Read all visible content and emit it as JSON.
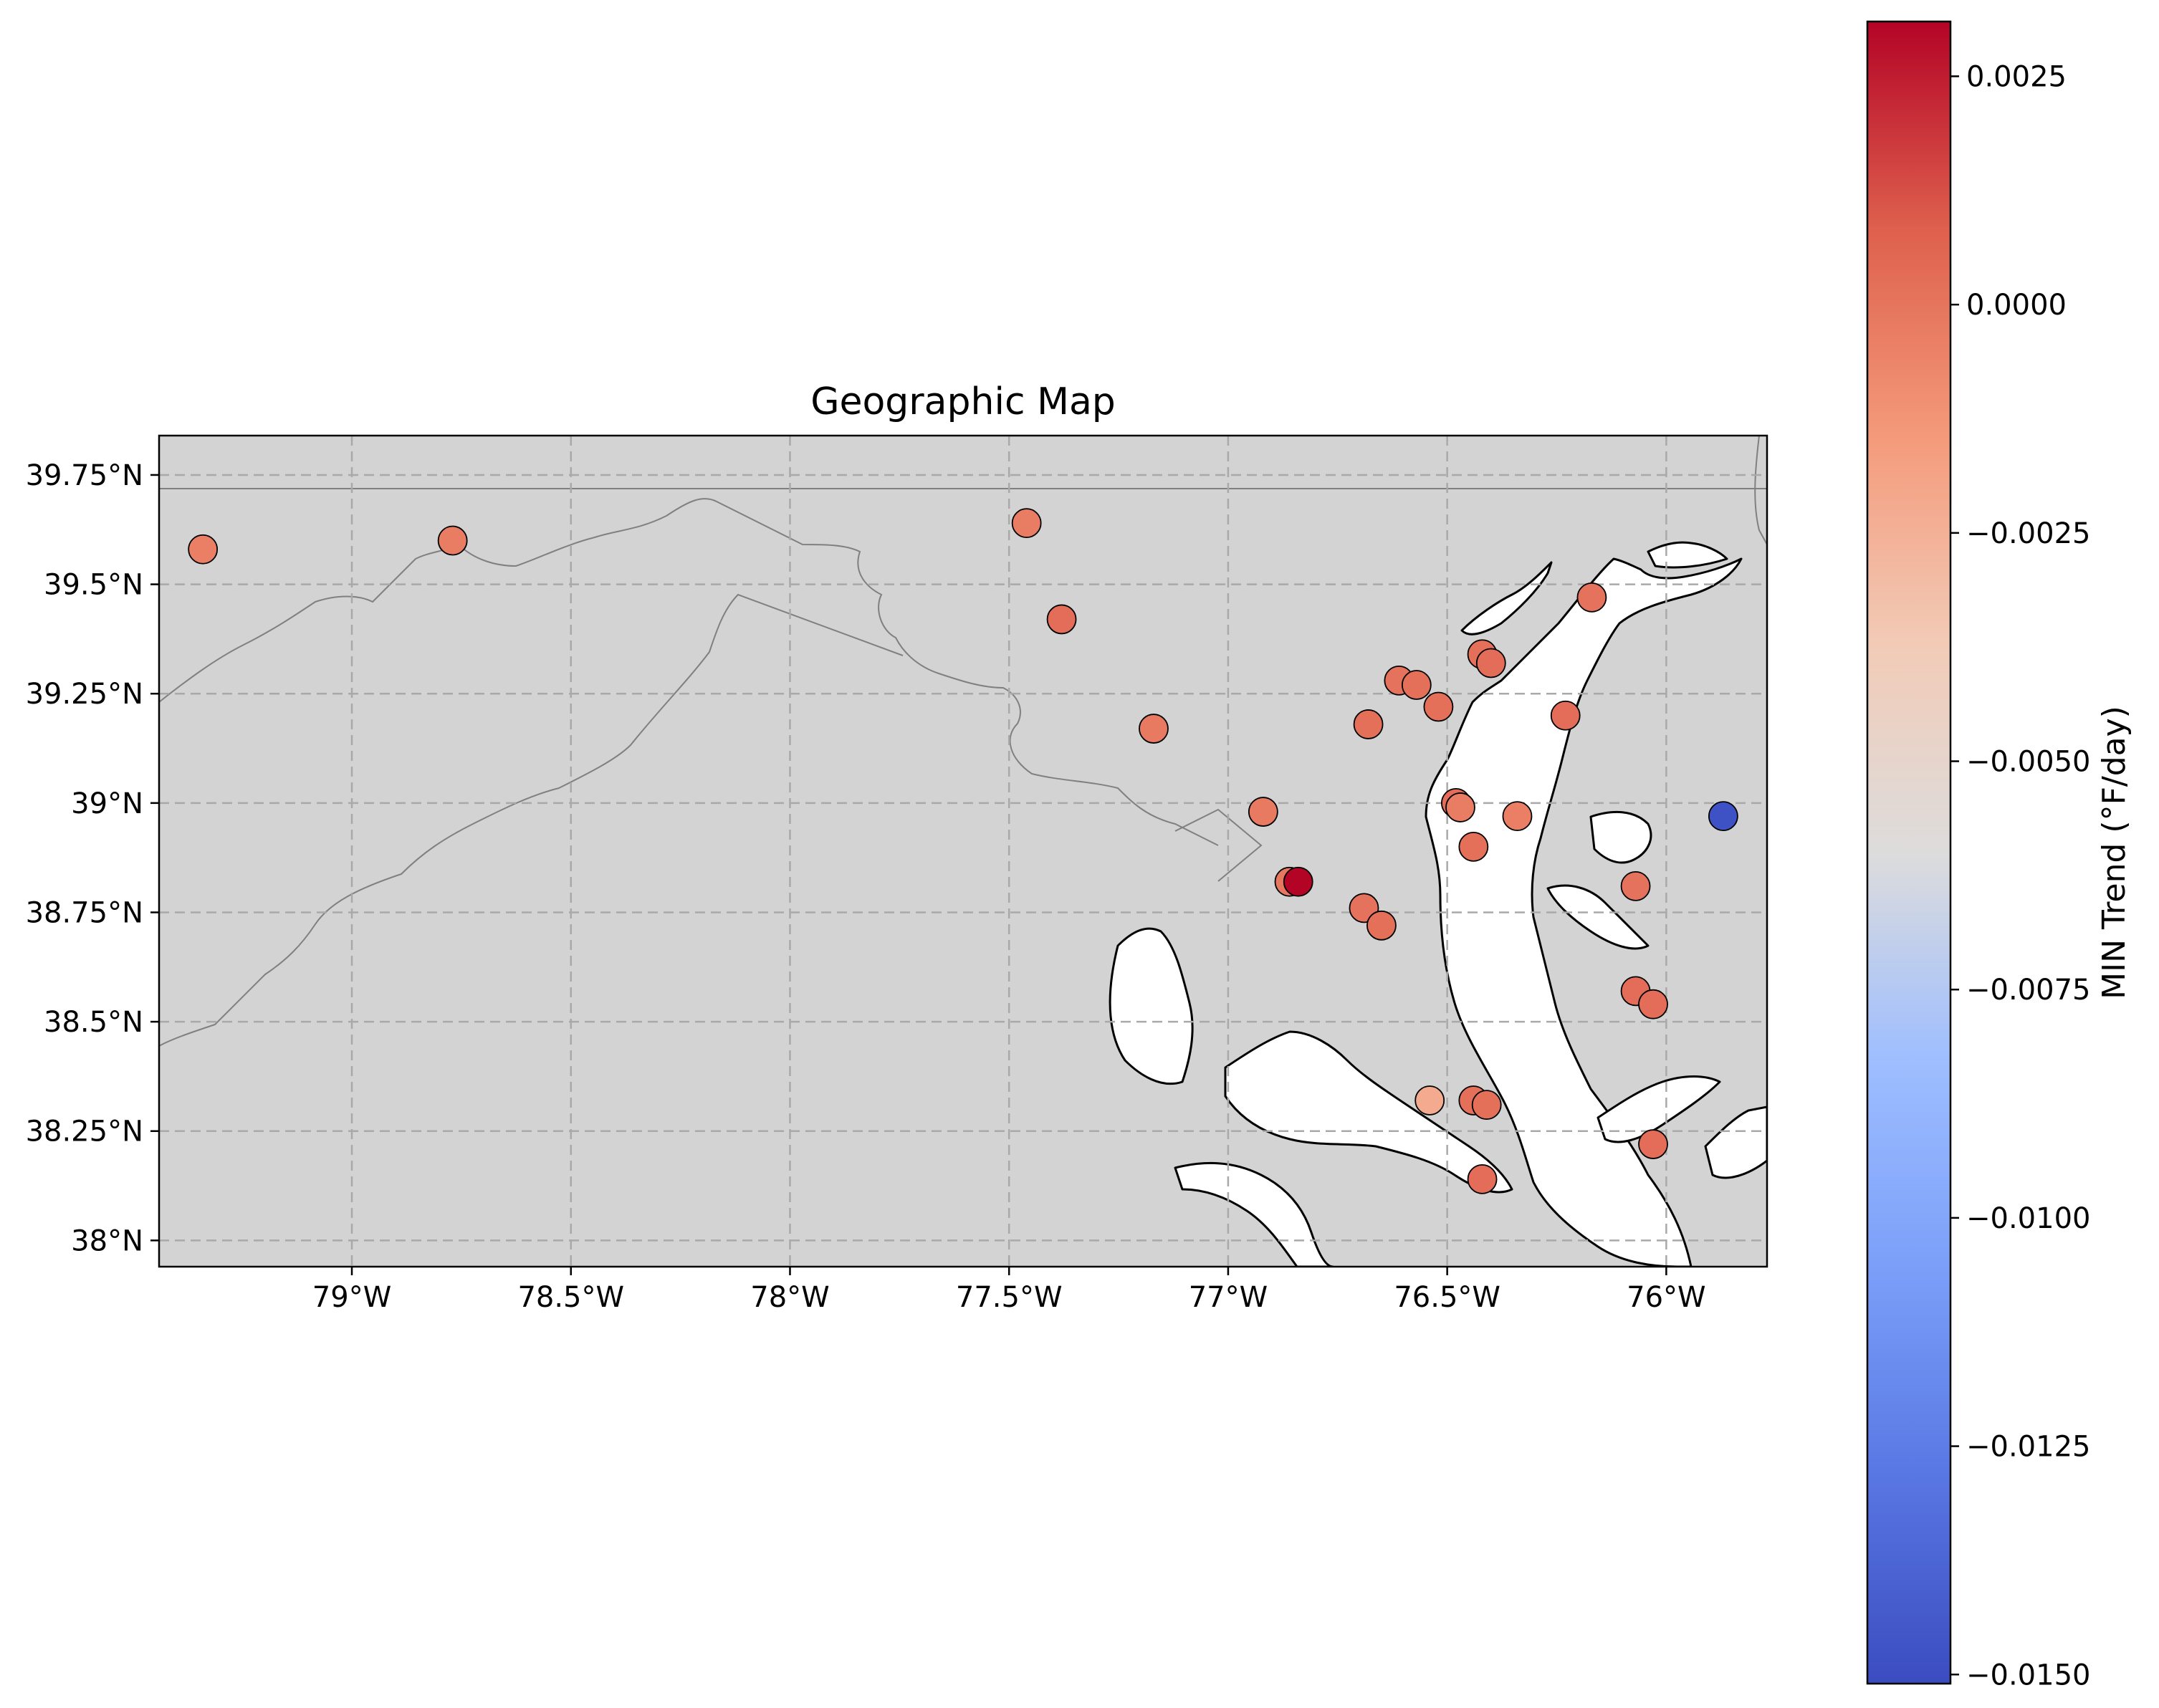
{
  "title": "Geographic Map",
  "colorbar_label": "MIN Trend (°F/day)",
  "colors": {
    "land": "#d3d3d3",
    "water": "#ffffff",
    "coastline": "#000000",
    "border": "#808080",
    "grid": "#a9a9a9",
    "colormap": "coolwarm"
  },
  "chart_data": {
    "type": "scatter",
    "title": "Geographic Map",
    "xlabel": "",
    "ylabel": "",
    "xlim": [
      -79.44,
      -75.77
    ],
    "ylim": [
      37.94,
      39.84
    ],
    "grid": true,
    "x_ticks": [
      -79.0,
      -78.5,
      -78.0,
      -77.5,
      -77.0,
      -76.5,
      -76.0
    ],
    "x_tick_labels": [
      "79°W",
      "78.5°W",
      "78°W",
      "77.5°W",
      "77°W",
      "76.5°W",
      "76°W"
    ],
    "y_ticks": [
      38.0,
      38.25,
      38.5,
      38.75,
      39.0,
      39.25,
      39.5,
      39.75
    ],
    "y_tick_labels": [
      "38°N",
      "38.25°N",
      "38.5°N",
      "38.75°N",
      "39°N",
      "39.25°N",
      "39.5°N",
      "39.75°N"
    ],
    "colorbar": {
      "label": "MIN Trend (°F/day)",
      "min": -0.0151,
      "max": 0.0031,
      "ticks": [
        0.0025,
        0.0,
        -0.0025,
        -0.005,
        -0.0075,
        -0.01,
        -0.0125,
        -0.015
      ],
      "tick_labels": [
        "0.0025",
        "0.0000",
        "−0.0025",
        "−0.0050",
        "−0.0075",
        "−0.0100",
        "−0.0125",
        "−0.0150"
      ]
    },
    "points": [
      {
        "lon": -79.34,
        "lat": 39.58,
        "value": -0.0004
      },
      {
        "lon": -78.77,
        "lat": 39.6,
        "value": -0.0003
      },
      {
        "lon": -77.46,
        "lat": 39.64,
        "value": -0.0003
      },
      {
        "lon": -77.38,
        "lat": 39.42,
        "value": 0.0003
      },
      {
        "lon": -77.17,
        "lat": 39.17,
        "value": -0.0002
      },
      {
        "lon": -76.92,
        "lat": 38.98,
        "value": -0.0002
      },
      {
        "lon": -76.86,
        "lat": 38.82,
        "value": -0.0001
      },
      {
        "lon": -76.84,
        "lat": 38.82,
        "value": 0.0031
      },
      {
        "lon": -76.69,
        "lat": 38.76,
        "value": 0.0001
      },
      {
        "lon": -76.65,
        "lat": 38.72,
        "value": 0.0002
      },
      {
        "lon": -76.68,
        "lat": 39.18,
        "value": 0.0002
      },
      {
        "lon": -76.61,
        "lat": 39.28,
        "value": 0.0001
      },
      {
        "lon": -76.57,
        "lat": 39.27,
        "value": 0.0002
      },
      {
        "lon": -76.52,
        "lat": 39.22,
        "value": 0.0002
      },
      {
        "lon": -76.48,
        "lat": 39.0,
        "value": 0.0003
      },
      {
        "lon": -76.47,
        "lat": 38.99,
        "value": -0.0003
      },
      {
        "lon": -76.44,
        "lat": 38.9,
        "value": 0.0002
      },
      {
        "lon": -76.42,
        "lat": 39.34,
        "value": 0.0002
      },
      {
        "lon": -76.4,
        "lat": 39.32,
        "value": 0.0003
      },
      {
        "lon": -76.34,
        "lat": 38.97,
        "value": -0.0004
      },
      {
        "lon": -76.23,
        "lat": 39.2,
        "value": 0.0003
      },
      {
        "lon": -76.17,
        "lat": 39.47,
        "value": 0.0001
      },
      {
        "lon": -76.07,
        "lat": 38.81,
        "value": 0.0001
      },
      {
        "lon": -76.07,
        "lat": 38.57,
        "value": 0.0003
      },
      {
        "lon": -76.03,
        "lat": 38.54,
        "value": 0.0003
      },
      {
        "lon": -76.54,
        "lat": 38.32,
        "value": -0.0022
      },
      {
        "lon": -76.44,
        "lat": 38.32,
        "value": 0.0002
      },
      {
        "lon": -76.41,
        "lat": 38.31,
        "value": 0.0002
      },
      {
        "lon": -76.42,
        "lat": 38.14,
        "value": 0.0003
      },
      {
        "lon": -76.03,
        "lat": 38.22,
        "value": 0.0003
      },
      {
        "lon": -75.87,
        "lat": 38.97,
        "value": -0.0148
      }
    ]
  }
}
